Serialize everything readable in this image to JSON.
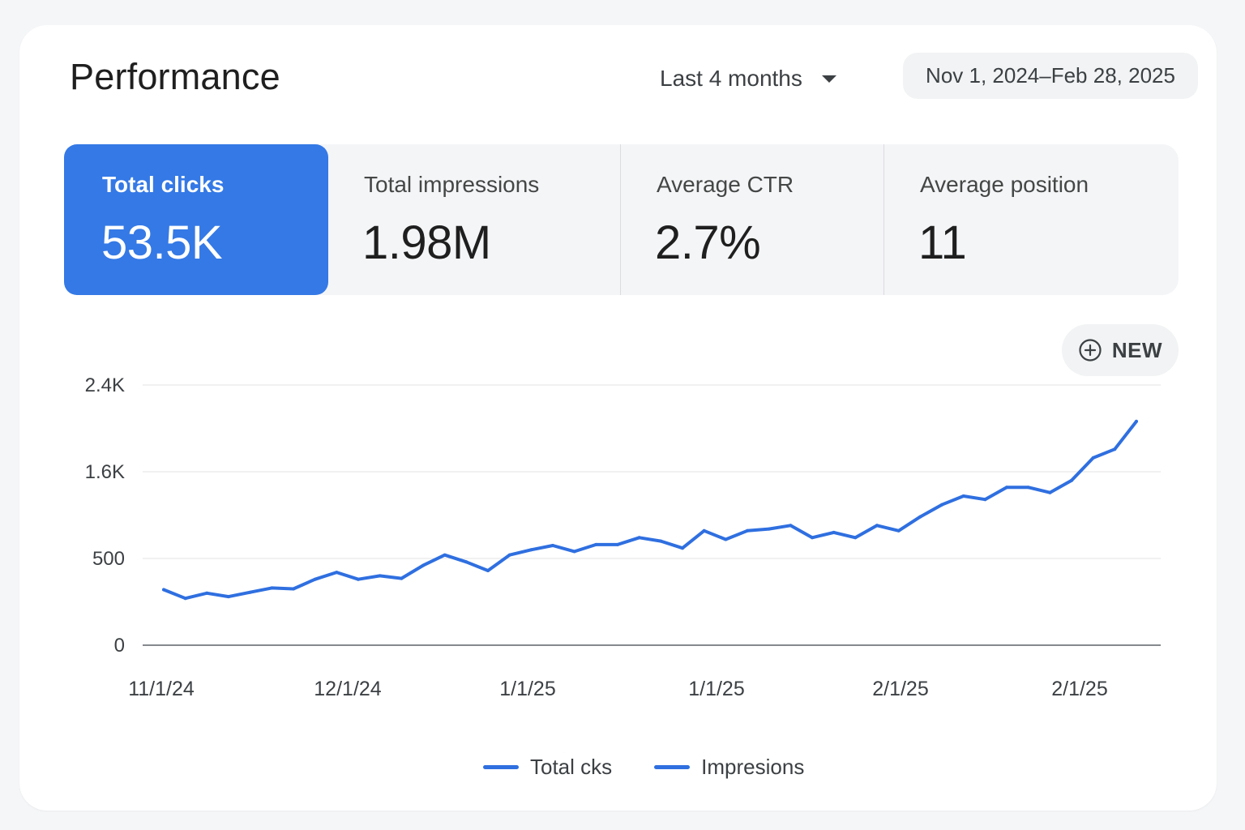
{
  "header": {
    "title": "Performance",
    "range_label": "Last 4 months",
    "date_range": "Nov 1, 2024–Feb 28, 2025"
  },
  "metrics": [
    {
      "label": "Total clicks",
      "value": "53.5K",
      "active": true
    },
    {
      "label": "Total impressions",
      "value": "1.98M",
      "active": false
    },
    {
      "label": "Average CTR",
      "value": "2.7%",
      "active": false
    },
    {
      "label": "Average position",
      "value": "11",
      "active": false
    }
  ],
  "new_button": {
    "label": "NEW",
    "icon": "plus-circle-icon"
  },
  "colors": {
    "accent": "#3479e6",
    "line": "#2f6fe0",
    "grid": "#e3e3e3"
  },
  "chart_data": {
    "type": "line",
    "yticks": [
      "2.4K",
      "1.6K",
      "500",
      "0"
    ],
    "xticks": [
      "11/1/24",
      "12/1/24",
      "1/1/25",
      "1/1/25",
      "2/1/25",
      "2/1/25"
    ],
    "grid": true,
    "legend_position": "bottom",
    "legend": [
      "Total cks",
      "Impresions"
    ],
    "series": [
      {
        "name": "Total cks",
        "values": [
          320,
          270,
          300,
          280,
          305,
          330,
          325,
          380,
          420,
          380,
          400,
          385,
          460,
          520,
          480,
          430,
          520,
          550,
          575,
          540,
          580,
          580,
          620,
          600,
          560,
          660,
          610,
          660,
          670,
          690,
          620,
          650,
          620,
          690,
          660,
          740,
          810,
          860,
          840,
          910,
          910,
          880,
          950,
          1080,
          1130,
          1290
        ]
      }
    ]
  }
}
